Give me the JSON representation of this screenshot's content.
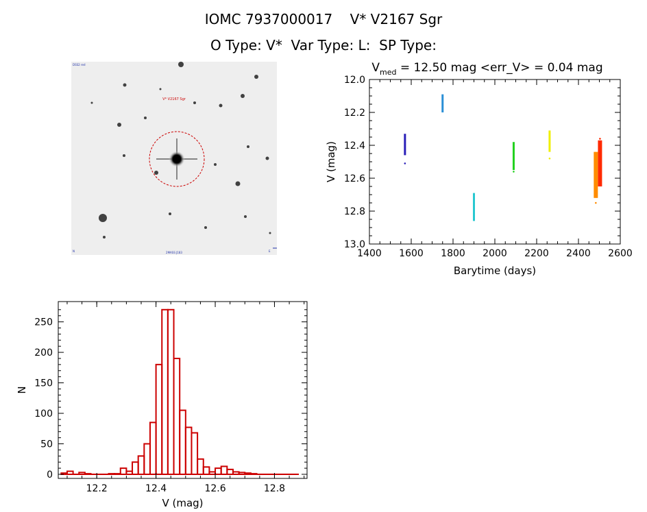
{
  "header": {
    "line1": "IOMC 7937000017    V* V2167 Sgr",
    "line2": "O Type: V*  Var Type: L:  SP Type:"
  },
  "colors": {
    "highlight": "#cc0000",
    "hist": "#cc0000",
    "axis": "#000000"
  },
  "chart_data": [
    {
      "type": "scatter",
      "title_main": "V",
      "title_sub": "med",
      "title_rest": " = 12.50 mag <err_V> = 0.04 mag",
      "xlabel": "Barytime (days)",
      "ylabel": "V (mag)",
      "xlim": [
        1400,
        2600
      ],
      "ylim": [
        13.0,
        12.0
      ],
      "xticks": [
        1400,
        1600,
        1800,
        2000,
        2200,
        2400,
        2600
      ],
      "yticks": [
        12.0,
        12.2,
        12.4,
        12.6,
        12.8,
        13.0
      ],
      "series": [
        {
          "color": "#2a1fb8",
          "x": 1570,
          "y_min": 12.33,
          "y_max": 12.46,
          "outliers": [
            12.51
          ]
        },
        {
          "color": "#2a8fd6",
          "x": 1750,
          "y_min": 12.09,
          "y_max": 12.2,
          "outliers": []
        },
        {
          "color": "#28c8d0",
          "x": 1900,
          "y_min": 12.69,
          "y_max": 12.86,
          "outliers": []
        },
        {
          "color": "#22d11e",
          "x": 2090,
          "y_min": 12.38,
          "y_max": 12.55,
          "outliers": [
            12.56
          ]
        },
        {
          "color": "#f0f000",
          "x": 2262,
          "y_min": 12.31,
          "y_max": 12.44,
          "outliers": [
            12.48
          ]
        },
        {
          "color": "#ff8c00",
          "x": 2483,
          "y_min": 12.44,
          "y_max": 12.72,
          "outliers": [
            12.75
          ]
        },
        {
          "color": "#ff2a00",
          "x": 2503,
          "y_min": 12.37,
          "y_max": 12.65,
          "outliers": [
            12.36
          ]
        }
      ]
    },
    {
      "type": "bar",
      "subtype": "histogram",
      "xlabel": "V (mag)",
      "ylabel": "N",
      "xlim": [
        12.07,
        12.91
      ],
      "ylim": [
        0,
        290
      ],
      "xticks": [
        12.2,
        12.4,
        12.6,
        12.8
      ],
      "yticks": [
        0,
        50,
        100,
        150,
        200,
        250
      ],
      "bin_width": 0.02,
      "bin_starts": [
        12.08,
        12.1,
        12.12,
        12.14,
        12.16,
        12.18,
        12.2,
        12.22,
        12.24,
        12.26,
        12.28,
        12.3,
        12.32,
        12.34,
        12.36,
        12.38,
        12.4,
        12.42,
        12.44,
        12.46,
        12.48,
        12.5,
        12.52,
        12.54,
        12.56,
        12.58,
        12.6,
        12.62,
        12.64,
        12.66,
        12.68,
        12.7,
        12.72,
        12.74,
        12.76,
        12.78,
        12.8,
        12.82,
        12.84,
        12.86
      ],
      "values": [
        2,
        5,
        0,
        3,
        1,
        0,
        0,
        0,
        1,
        1,
        10,
        5,
        20,
        30,
        50,
        85,
        180,
        270,
        270,
        190,
        105,
        77,
        68,
        25,
        12,
        4,
        10,
        13,
        8,
        4,
        3,
        2,
        1,
        0,
        0,
        0,
        0,
        0,
        0,
        0
      ]
    }
  ],
  "finder": {
    "target_label": "V* V2167 Sgr",
    "corner_tl": "DSS2 red",
    "corner_bl": "N",
    "corner_br": "E",
    "bottom_label": "2MASS J183"
  }
}
